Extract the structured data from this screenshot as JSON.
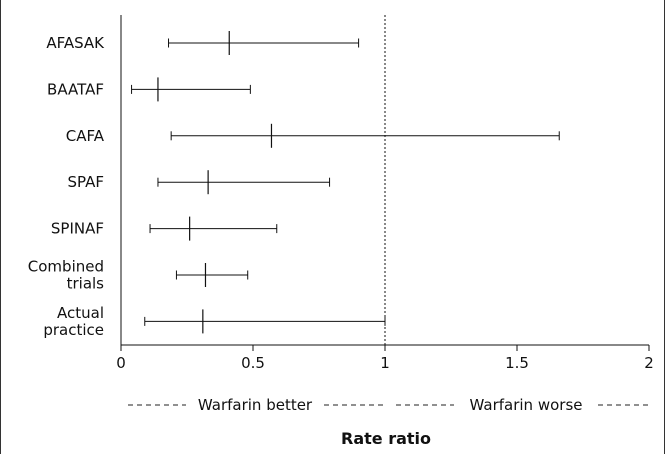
{
  "chart_data": {
    "type": "forest",
    "xlim": [
      0,
      2
    ],
    "x_ticks": [
      {
        "value": 0,
        "label": "0"
      },
      {
        "value": 0.5,
        "label": "0.5"
      },
      {
        "value": 1,
        "label": "1"
      },
      {
        "value": 1.5,
        "label": "1.5"
      },
      {
        "value": 2,
        "label": "2"
      }
    ],
    "reference_line": 1,
    "grid": false,
    "rows": [
      {
        "label": [
          "AFASAK"
        ],
        "estimate": 0.41,
        "lower": 0.18,
        "upper": 0.9
      },
      {
        "label": [
          "BAATAF"
        ],
        "estimate": 0.14,
        "lower": 0.04,
        "upper": 0.49
      },
      {
        "label": [
          "CAFA"
        ],
        "estimate": 0.57,
        "lower": 0.19,
        "upper": 1.66
      },
      {
        "label": [
          "SPAF"
        ],
        "estimate": 0.33,
        "lower": 0.14,
        "upper": 0.79
      },
      {
        "label": [
          "SPINAF"
        ],
        "estimate": 0.26,
        "lower": 0.11,
        "upper": 0.59
      },
      {
        "label": [
          "Combined",
          "trials"
        ],
        "estimate": 0.32,
        "lower": 0.21,
        "upper": 0.48
      },
      {
        "label": [
          "Actual",
          "practice"
        ],
        "estimate": 0.31,
        "lower": 0.09,
        "upper": 1.0
      }
    ],
    "annotations": {
      "left": "Warfarin better",
      "right": "Warfarin worse"
    },
    "xlabel": "Rate ratio"
  }
}
